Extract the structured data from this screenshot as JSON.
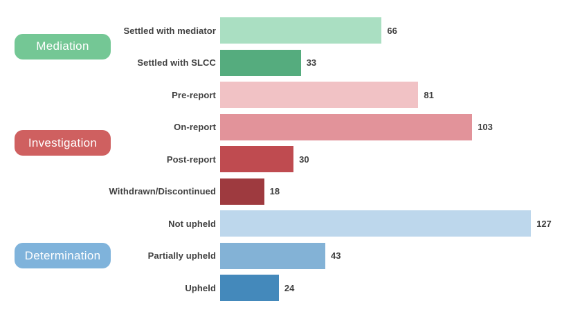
{
  "chart_data": {
    "type": "bar",
    "orientation": "horizontal",
    "title": "",
    "xlabel": "",
    "ylabel": "",
    "xlim": [
      0,
      140
    ],
    "grid": false,
    "axis_lines": false,
    "value_labels": true,
    "label_color": "#404040",
    "groups": [
      {
        "label": "Mediation",
        "pill_color": "#74C795",
        "pill_text_color": "#ffffff",
        "bars": [
          {
            "label": "Settled with mediator",
            "value": 66,
            "color": "#AADFC2"
          },
          {
            "label": "Settled with SLCC",
            "value": 33,
            "color": "#55AC7E"
          }
        ]
      },
      {
        "label": "Investigation",
        "pill_color": "#CF6060",
        "pill_text_color": "#ffffff",
        "bars": [
          {
            "label": "Pre-report",
            "value": 81,
            "color": "#F1C2C5"
          },
          {
            "label": "On-report",
            "value": 103,
            "color": "#E2939A"
          },
          {
            "label": "Post-report",
            "value": 30,
            "color": "#BF4B50"
          },
          {
            "label": "Withdrawn/Discontinued",
            "value": 18,
            "color": "#9E3A3F"
          }
        ]
      },
      {
        "label": "Determination",
        "pill_color": "#7FB3DB",
        "pill_text_color": "#ffffff",
        "bars": [
          {
            "label": "Not upheld",
            "value": 127,
            "color": "#BDD7EC"
          },
          {
            "label": "Partially upheld",
            "value": 43,
            "color": "#83B2D6"
          },
          {
            "label": "Upheld",
            "value": 24,
            "color": "#4489BB"
          }
        ]
      }
    ]
  }
}
